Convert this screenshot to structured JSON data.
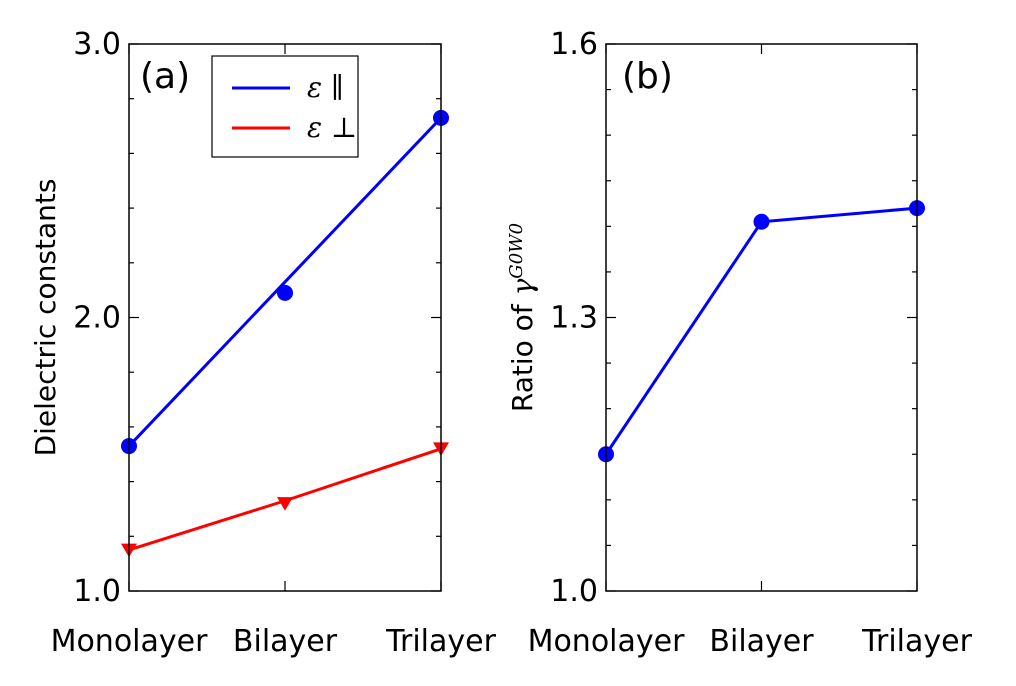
{
  "chart_data": [
    {
      "type": "line",
      "panel_label": "(a)",
      "categories": [
        "Monolayer",
        "Bilayer",
        "Trilayer"
      ],
      "ylabel": "Dielectric constants",
      "ylim": [
        1.0,
        3.0
      ],
      "yticks": [
        1.0,
        2.0,
        3.0
      ],
      "ytick_labels": [
        "1.0",
        "2.0",
        "3.0"
      ],
      "minor_ytick_step": 0.2,
      "grid": false,
      "legend_position": "top-center",
      "series": [
        {
          "name": "ε ∥",
          "values": [
            1.53,
            2.09,
            2.73
          ],
          "color": "#0000ff",
          "marker": "circle",
          "marker_visible": [
            true,
            true,
            true
          ],
          "fit_values": [
            1.53,
            2.13,
            2.73
          ]
        },
        {
          "name": "ε ⊥",
          "values": [
            1.15,
            1.32,
            1.52
          ],
          "color": "#ff0000",
          "marker": "triangle-down",
          "marker_visible": [
            true,
            true,
            true
          ],
          "fit_values": [
            1.15,
            1.33,
            1.52
          ]
        }
      ]
    },
    {
      "type": "line",
      "panel_label": "(b)",
      "categories": [
        "Monolayer",
        "Bilayer",
        "Trilayer"
      ],
      "ylabel": "Ratio of γ^G0W0",
      "ylabel_text": "Ratio of ",
      "ylabel_symbol": "γ",
      "ylabel_superscript": "G0W0",
      "ylim": [
        1.0,
        1.6
      ],
      "yticks": [
        1.0,
        1.3,
        1.6
      ],
      "ytick_labels": [
        "1.0",
        "1.3",
        "1.6"
      ],
      "minor_ytick_step": 0.05,
      "grid": false,
      "series": [
        {
          "values": [
            1.15,
            1.405,
            1.42
          ],
          "color": "#0000ff",
          "marker": "circle"
        }
      ]
    }
  ]
}
